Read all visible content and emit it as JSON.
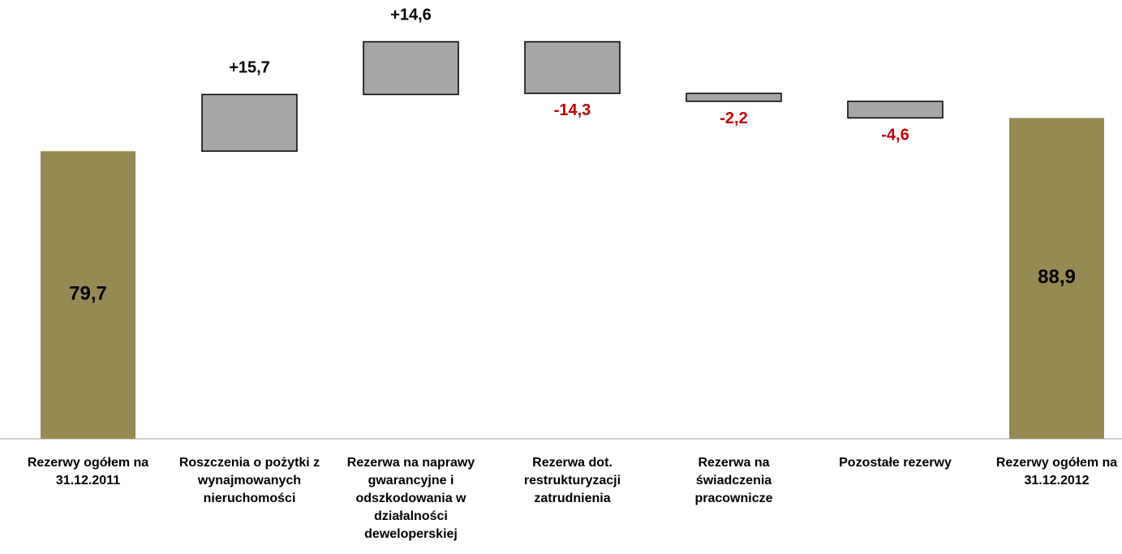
{
  "chart_data": {
    "type": "bar",
    "subtype": "waterfall",
    "title": "",
    "xlabel": "",
    "ylabel": "",
    "grid": false,
    "legend": "none",
    "colors": {
      "total": "#968A52",
      "change": "#A6A6A6",
      "positive_label": "#000000",
      "negative_label": "#C00000"
    },
    "categories": [
      {
        "id": "start",
        "kind": "total",
        "value": 79.7,
        "value_label": "79,7",
        "label_lines": [
          "Rezerwy ogółem na",
          "31.12.2011"
        ]
      },
      {
        "id": "roszczenia",
        "kind": "delta",
        "value": 15.7,
        "value_label": "+15,7",
        "label_lines": [
          "Roszczenia o pożytki z",
          "wynajmowanych",
          "nieruchomości"
        ]
      },
      {
        "id": "naprawy",
        "kind": "delta",
        "value": 14.6,
        "value_label": "+14,6",
        "label_lines": [
          "Rezerwa na naprawy",
          "gwarancyjne i",
          "odszkodowania w",
          "działalności",
          "deweloperskiej"
        ]
      },
      {
        "id": "restrukturyzacja",
        "kind": "delta",
        "value": -14.3,
        "value_label": "-14,3",
        "label_lines": [
          "Rezerwa dot.",
          "restrukturyzacji",
          "zatrudnienia"
        ]
      },
      {
        "id": "swiadczenia",
        "kind": "delta",
        "value": -2.2,
        "value_label": "-2,2",
        "label_lines": [
          "Rezerwa na",
          "świadczenia",
          "pracownicze"
        ]
      },
      {
        "id": "pozostale",
        "kind": "delta",
        "value": -4.6,
        "value_label": "-4,6",
        "label_lines": [
          "Pozostałe rezerwy"
        ]
      },
      {
        "id": "end",
        "kind": "total",
        "value": 88.9,
        "value_label": "88,9",
        "label_lines": [
          "Rezerwy ogółem na",
          "31.12.2012"
        ]
      }
    ]
  }
}
